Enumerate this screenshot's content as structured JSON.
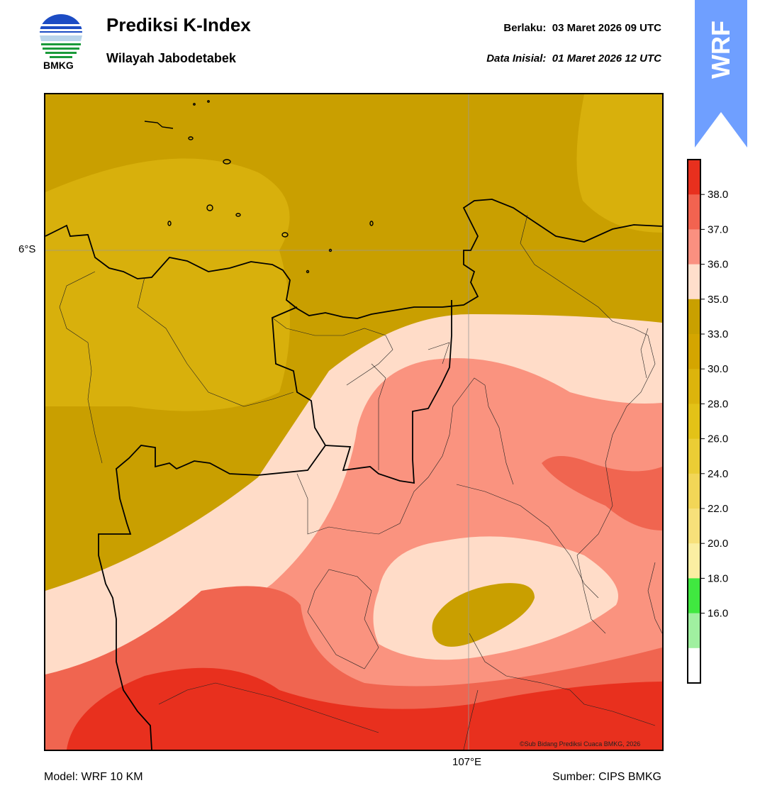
{
  "header": {
    "title": "Prediksi K-Index",
    "subtitle": "Wilayah Jabodetabek",
    "valid_label": "Berlaku:",
    "valid_value": "03 Maret 2026 09 UTC",
    "init_label": "Data Inisial:",
    "init_value": "01 Maret 2026 12 UTC"
  },
  "logo": {
    "text": "BMKG",
    "icon": "bmkg-logo-icon"
  },
  "badge": {
    "text": "WRF",
    "color": "#6f9fff",
    "icon": "up-arrow-icon"
  },
  "map": {
    "lat_label": "6°S",
    "lon_label": "107°E",
    "copyright": "©Sub Bidang Prediksi Cuaca BMKG, 2026",
    "field": "K-Index",
    "zones_ordered_low_to_high": [
      "30.0–33.0",
      "33.0–35.0",
      "35.0–36.0",
      "36.0–37.0",
      "37.0–38.0",
      ">38.0"
    ]
  },
  "footer": {
    "model": "Model: WRF 10 KM",
    "source": "Sumber: CIPS BMKG"
  },
  "colorbar": {
    "ticks": [
      "38.0",
      "37.0",
      "36.0",
      "35.0",
      "33.0",
      "30.0",
      "28.0",
      "26.0",
      "24.0",
      "22.0",
      "20.0",
      "18.0",
      "16.0"
    ],
    "colors_top_to_bottom": [
      "#e8301e",
      "#f26350",
      "#fa9080",
      "#ffdecb",
      "#c9a000",
      "#d4a500",
      "#dcb40c",
      "#e3c217",
      "#ebcd35",
      "#f2d657",
      "#f7e07a",
      "#fbeea2",
      "#40e840",
      "#a0f0a0",
      "#ffffff"
    ]
  }
}
